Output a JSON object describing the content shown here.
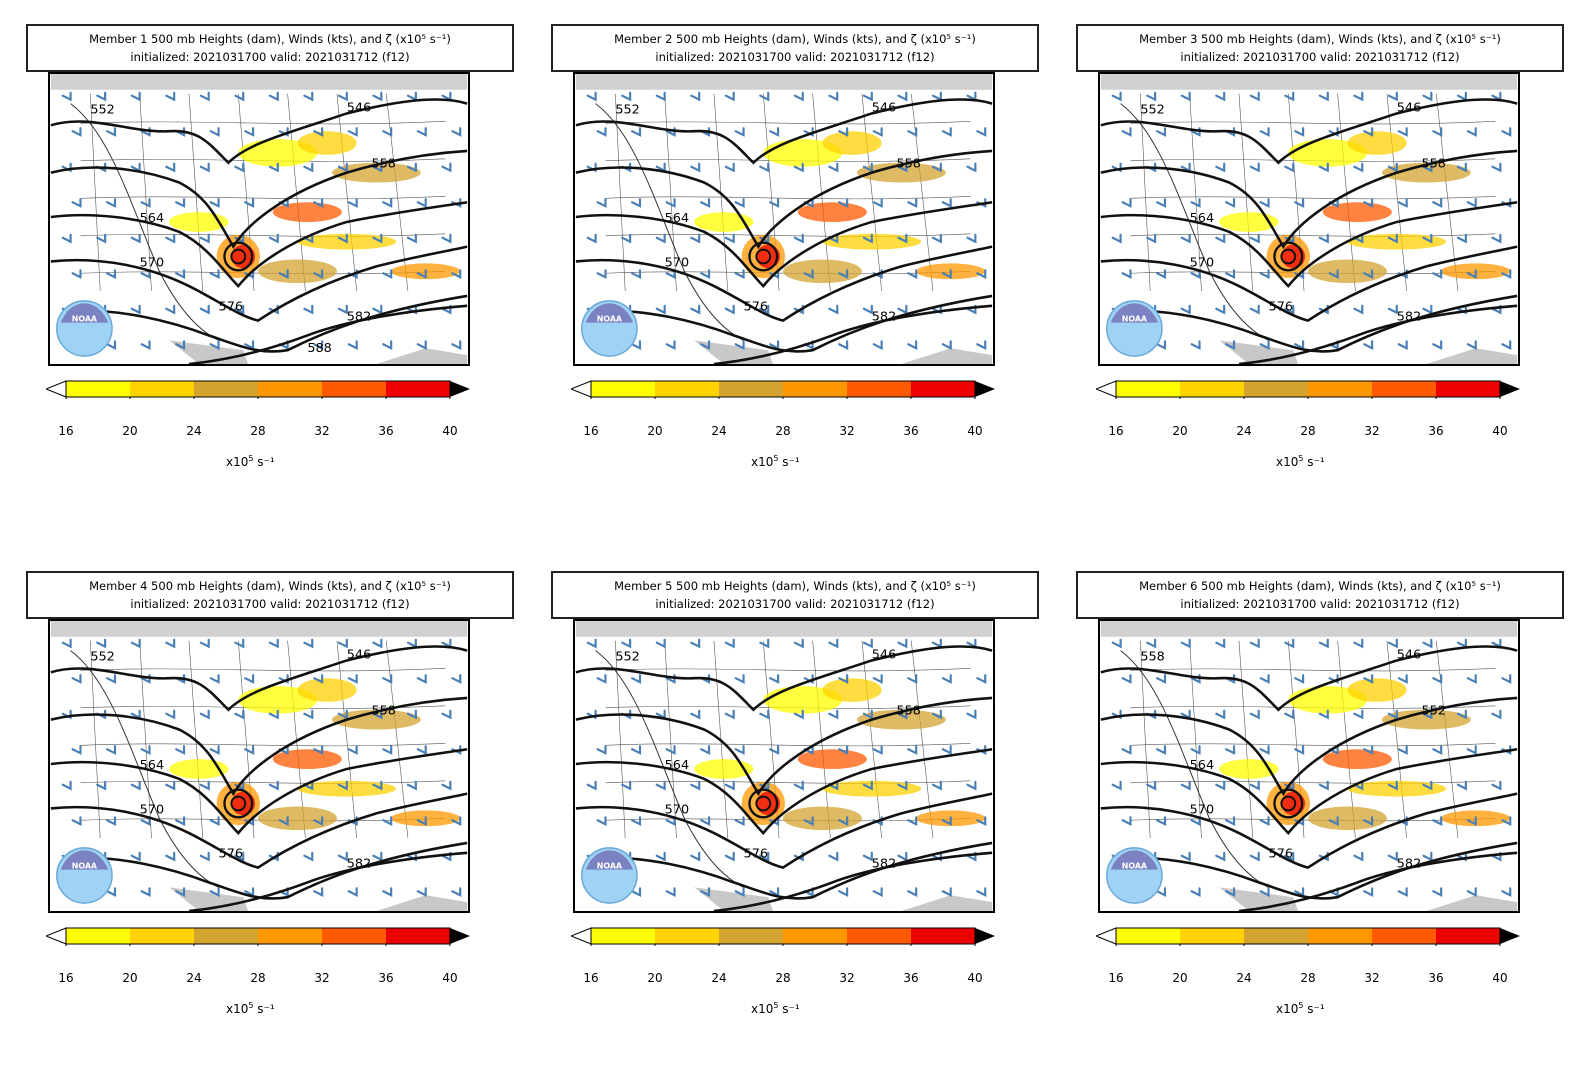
{
  "common": {
    "title_prefix": "500 mb Heights (dam), Winds (kts), and ζ (x10⁵ s⁻¹)",
    "subtitle": "initialized: 2021031700 valid: 2021031712 (f12)",
    "colorbar": {
      "ticks": [
        "16",
        "20",
        "24",
        "28",
        "32",
        "36",
        "40"
      ],
      "colors": [
        "#ffff00",
        "#ffd200",
        "#d4a330",
        "#ff9800",
        "#ff5a00",
        "#ee0000"
      ],
      "under_color": "#ffffff",
      "over_color": "#000000",
      "unit_base": "x10",
      "unit_exp": "5",
      "unit_tail": "s⁻¹"
    },
    "logo": "NOAA",
    "colors": {
      "contour": "#111111",
      "barb": "#4a7fb5",
      "border": "#000000"
    }
  },
  "panels": [
    {
      "title": "Member 1 500 mb Heights (dam), Winds (kts), and ζ (x10⁵ s⁻¹)",
      "contour_labels": [
        "552",
        "546",
        "558",
        "564",
        "570",
        "576",
        "582",
        "588"
      ]
    },
    {
      "title": "Member 2 500 mb Heights (dam), Winds (kts), and ζ (x10⁵ s⁻¹)",
      "contour_labels": [
        "552",
        "546",
        "558",
        "564",
        "570",
        "576",
        "582"
      ]
    },
    {
      "title": "Member 3 500 mb Heights (dam), Winds (kts), and ζ (x10⁵ s⁻¹)",
      "contour_labels": [
        "552",
        "546",
        "558",
        "564",
        "570",
        "576",
        "582"
      ]
    },
    {
      "title": "Member 4 500 mb Heights (dam), Winds (kts), and ζ (x10⁵ s⁻¹)",
      "contour_labels": [
        "552",
        "546",
        "558",
        "564",
        "570",
        "576",
        "582"
      ]
    },
    {
      "title": "Member 5 500 mb Heights (dam), Winds (kts), and ζ (x10⁵ s⁻¹)",
      "contour_labels": [
        "552",
        "546",
        "558",
        "564",
        "570",
        "576",
        "582"
      ]
    },
    {
      "title": "Member 6 500 mb Heights (dam), Winds (kts), and ζ (x10⁵ s⁻¹)",
      "contour_labels": [
        "558",
        "546",
        "552",
        "564",
        "570",
        "576",
        "582"
      ]
    }
  ]
}
